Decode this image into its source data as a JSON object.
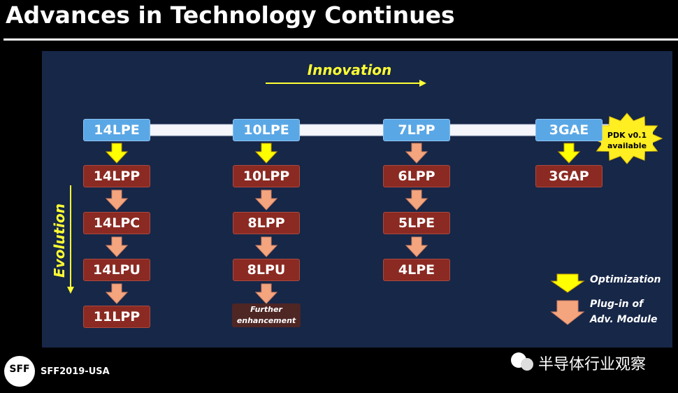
{
  "title": "Advances in Technology Continues",
  "innovation_label": "Innovation",
  "evolution_label": "Evolution",
  "columns": [
    {
      "head": "14LPE",
      "nodes": [
        "14LPP",
        "14LPC",
        "14LPU",
        "11LPP"
      ]
    },
    {
      "head": "10LPE",
      "nodes": [
        "10LPP",
        "8LPP",
        "8LPU"
      ],
      "note": "Further enhancement"
    },
    {
      "head": "7LPP",
      "nodes": [
        "6LPP",
        "5LPE",
        "4LPE"
      ]
    },
    {
      "head": "3GAE",
      "nodes": [
        "3GAP"
      ],
      "badge": "PDK v0.1 available"
    }
  ],
  "legend": {
    "optimization": "Optimization",
    "plugin": "Plug-in of Adv. Module"
  },
  "footer": {
    "logo": "SFF",
    "event": "SFF2019-USA",
    "source": "半导体行业观察"
  }
}
